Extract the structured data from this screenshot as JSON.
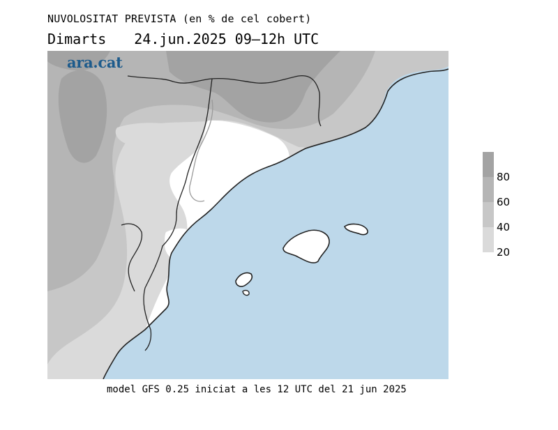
{
  "header": {
    "title": "NUVOLOSITAT PREVISTA (en % de cel cobert)",
    "day": "Dimarts",
    "date_range": "24.jun.2025 09–12h UTC"
  },
  "branding": {
    "logo_text": "ara.cat",
    "logo_color": "#1d5b8c"
  },
  "legend": {
    "labels": [
      "80",
      "60",
      "40",
      "20"
    ],
    "colors": [
      "#a3a3a3",
      "#b5b5b5",
      "#c7c7c7",
      "#dadada"
    ]
  },
  "map": {
    "sea_color": "#bdd8ea",
    "land_clear_color": "#ffffff",
    "coast_color": "#222222",
    "border_color": "#9a9a9a"
  },
  "footer": {
    "text": "model GFS 0.25 iniciat a les 12 UTC del 21 jun 2025"
  }
}
